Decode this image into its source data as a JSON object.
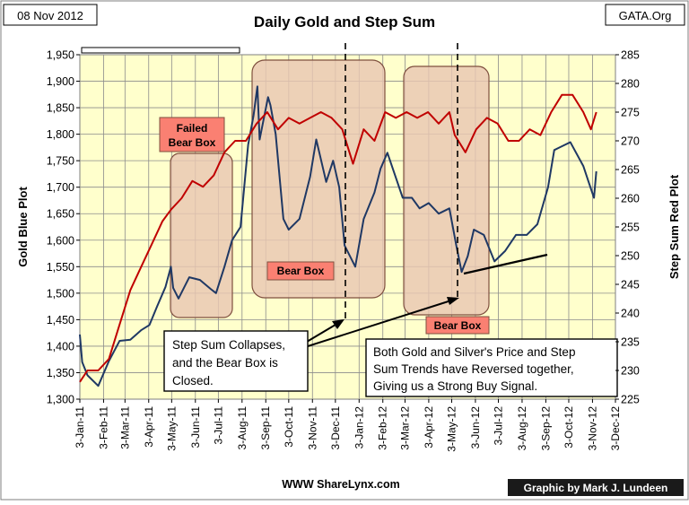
{
  "header": {
    "date": "08 Nov 2012",
    "title": "Daily Gold and Step Sum",
    "source": "GATA.Org"
  },
  "footer": {
    "website": "WWW ShareLynx.com",
    "credit": "Graphic by Mark J. Lundeen"
  },
  "annotations": {
    "failed_bear_box_line1": "Failed",
    "failed_bear_box_line2": "Bear Box",
    "bear_box_1": "Bear Box",
    "bear_box_2": "Bear Box",
    "collapse_line1": "Step Sum Collapses,",
    "collapse_line2": "and the Bear Box is",
    "collapse_line3": "Closed.",
    "reversal_line1": "Both Gold and Silver's Price and Step",
    "reversal_line2": "Sum Trends have Reversed together,",
    "reversal_line3": "Giving us a Strong Buy Signal."
  },
  "colors": {
    "background": "#ffffff",
    "plot_area": "#ffffcc",
    "gold_line": "#1f3864",
    "step_sum_line": "#c00000",
    "bear_box_fill": "#e9c7b2",
    "label_fill": "#fa8072",
    "footer_credit_bg": "#1a1a1a"
  },
  "chart_data": {
    "type": "line",
    "title": "Daily Gold and Step Sum",
    "ylabel": "Gold Blue Plot",
    "y2label": "Step Sum Red Plot",
    "ylim": [
      1300,
      1950
    ],
    "y2lim": [
      225,
      285
    ],
    "grid": true,
    "yticks": [
      "1,300",
      "1,350",
      "1,400",
      "1,450",
      "1,500",
      "1,550",
      "1,600",
      "1,650",
      "1,700",
      "1,750",
      "1,800",
      "1,850",
      "1,900",
      "1,950"
    ],
    "y2ticks": [
      "225",
      "230",
      "235",
      "240",
      "245",
      "250",
      "255",
      "260",
      "265",
      "270",
      "275",
      "280",
      "285"
    ],
    "xticks": [
      "3-Jan-11",
      "3-Feb-11",
      "3-Mar-11",
      "3-Apr-11",
      "3-May-11",
      "3-Jun-11",
      "3-Jul-11",
      "3-Aug-11",
      "3-Sep-11",
      "3-Oct-11",
      "3-Nov-11",
      "3-Dec-11",
      "3-Jan-12",
      "3-Feb-12",
      "3-Mar-12",
      "3-Apr-12",
      "3-May-12",
      "3-Jun-12",
      "3-Jul-12",
      "3-Aug-12",
      "3-Sep-12",
      "3-Oct-12",
      "3-Nov-12",
      "3-Dec-12"
    ],
    "series": [
      {
        "name": "Gold Blue Plot",
        "axis": "left",
        "x": [
          "2011-01-03",
          "2011-01-06",
          "2011-01-13",
          "2011-01-27",
          "2011-02-10",
          "2011-02-24",
          "2011-03-10",
          "2011-03-24",
          "2011-04-04",
          "2011-04-14",
          "2011-04-25",
          "2011-05-02",
          "2011-05-05",
          "2011-05-12",
          "2011-05-26",
          "2011-06-09",
          "2011-06-23",
          "2011-06-30",
          "2011-07-11",
          "2011-07-21",
          "2011-08-01",
          "2011-08-11",
          "2011-08-18",
          "2011-08-23",
          "2011-08-26",
          "2011-09-06",
          "2011-09-09",
          "2011-09-16",
          "2011-09-26",
          "2011-10-03",
          "2011-10-17",
          "2011-10-31",
          "2011-11-08",
          "2011-11-21",
          "2011-11-30",
          "2011-12-08",
          "2011-12-15",
          "2011-12-29",
          "2012-01-09",
          "2012-01-23",
          "2012-01-31",
          "2012-02-09",
          "2012-02-29",
          "2012-03-12",
          "2012-03-22",
          "2012-04-03",
          "2012-04-16",
          "2012-04-30",
          "2012-05-09",
          "2012-05-16",
          "2012-05-24",
          "2012-06-01",
          "2012-06-14",
          "2012-06-28",
          "2012-07-12",
          "2012-07-26",
          "2012-08-09",
          "2012-08-23",
          "2012-09-06",
          "2012-09-14",
          "2012-09-21",
          "2012-10-05",
          "2012-10-22",
          "2012-10-29",
          "2012-11-05",
          "2012-11-08"
        ],
        "values": [
          1422,
          1370,
          1345,
          1325,
          1372,
          1410,
          1412,
          1430,
          1440,
          1475,
          1512,
          1550,
          1510,
          1490,
          1530,
          1525,
          1508,
          1500,
          1550,
          1600,
          1625,
          1780,
          1835,
          1890,
          1790,
          1870,
          1855,
          1800,
          1640,
          1620,
          1640,
          1720,
          1790,
          1710,
          1750,
          1700,
          1590,
          1550,
          1640,
          1690,
          1735,
          1765,
          1680,
          1680,
          1660,
          1670,
          1650,
          1660,
          1590,
          1540,
          1570,
          1620,
          1610,
          1560,
          1580,
          1610,
          1610,
          1630,
          1700,
          1770,
          1775,
          1785,
          1740,
          1710,
          1680,
          1730
        ]
      },
      {
        "name": "Step Sum Red Plot",
        "axis": "right",
        "x": [
          "2011-01-03",
          "2011-01-13",
          "2011-01-27",
          "2011-02-10",
          "2011-02-24",
          "2011-03-10",
          "2011-03-24",
          "2011-04-07",
          "2011-04-21",
          "2011-05-02",
          "2011-05-16",
          "2011-05-30",
          "2011-06-13",
          "2011-06-27",
          "2011-07-11",
          "2011-07-25",
          "2011-08-08",
          "2011-08-22",
          "2011-09-05",
          "2011-09-19",
          "2011-10-03",
          "2011-10-17",
          "2011-10-31",
          "2011-11-14",
          "2011-11-28",
          "2011-12-12",
          "2011-12-26",
          "2012-01-09",
          "2012-01-23",
          "2012-02-06",
          "2012-02-20",
          "2012-03-05",
          "2012-03-19",
          "2012-04-02",
          "2012-04-16",
          "2012-04-30",
          "2012-05-07",
          "2012-05-21",
          "2012-06-04",
          "2012-06-18",
          "2012-07-02",
          "2012-07-16",
          "2012-07-30",
          "2012-08-13",
          "2012-08-27",
          "2012-09-10",
          "2012-09-24",
          "2012-10-08",
          "2012-10-22",
          "2012-11-01",
          "2012-11-08"
        ],
        "values": [
          228,
          230,
          230,
          232,
          238,
          244,
          248,
          252,
          256,
          258,
          260,
          263,
          262,
          264,
          268,
          270,
          270,
          273,
          275,
          272,
          274,
          273,
          274,
          275,
          274,
          272,
          266,
          272,
          270,
          275,
          274,
          275,
          274,
          275,
          273,
          275,
          271,
          268,
          272,
          274,
          273,
          270,
          270,
          272,
          271,
          275,
          278,
          278,
          275,
          272,
          275
        ]
      }
    ]
  }
}
